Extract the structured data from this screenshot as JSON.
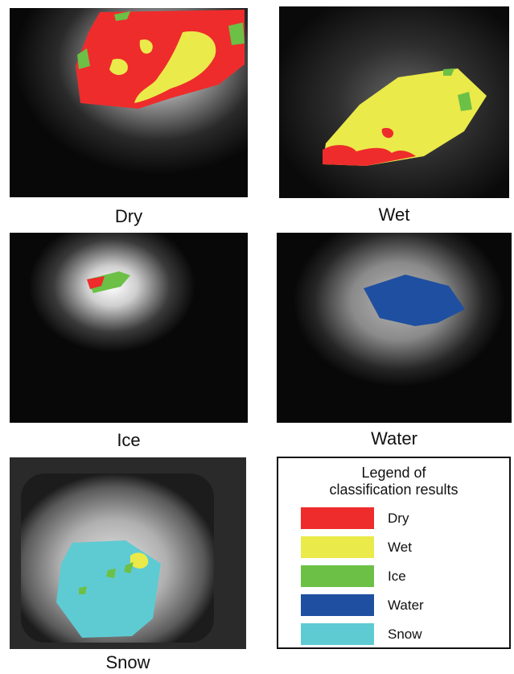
{
  "panels": [
    {
      "id": "dry",
      "caption": "Dry"
    },
    {
      "id": "wet",
      "caption": "Wet"
    },
    {
      "id": "ice",
      "caption": "Ice"
    },
    {
      "id": "water",
      "caption": "Water"
    },
    {
      "id": "snow",
      "caption": "Snow"
    }
  ],
  "legend": {
    "title_line1": "Legend of",
    "title_line2": "classification results",
    "items": [
      {
        "label": "Dry",
        "color": "#ee2c2c"
      },
      {
        "label": "Wet",
        "color": "#eaea4a"
      },
      {
        "label": "Ice",
        "color": "#6cc046"
      },
      {
        "label": "Water",
        "color": "#1f4fa0"
      },
      {
        "label": "Snow",
        "color": "#5ecbd3"
      }
    ]
  },
  "colors": {
    "dry": "#ee2c2c",
    "wet": "#eaea4a",
    "ice": "#6cc046",
    "water": "#1f4fa0",
    "snow": "#5ecbd3",
    "background": "#0a0a0a",
    "glow": "#bdbdbd"
  }
}
